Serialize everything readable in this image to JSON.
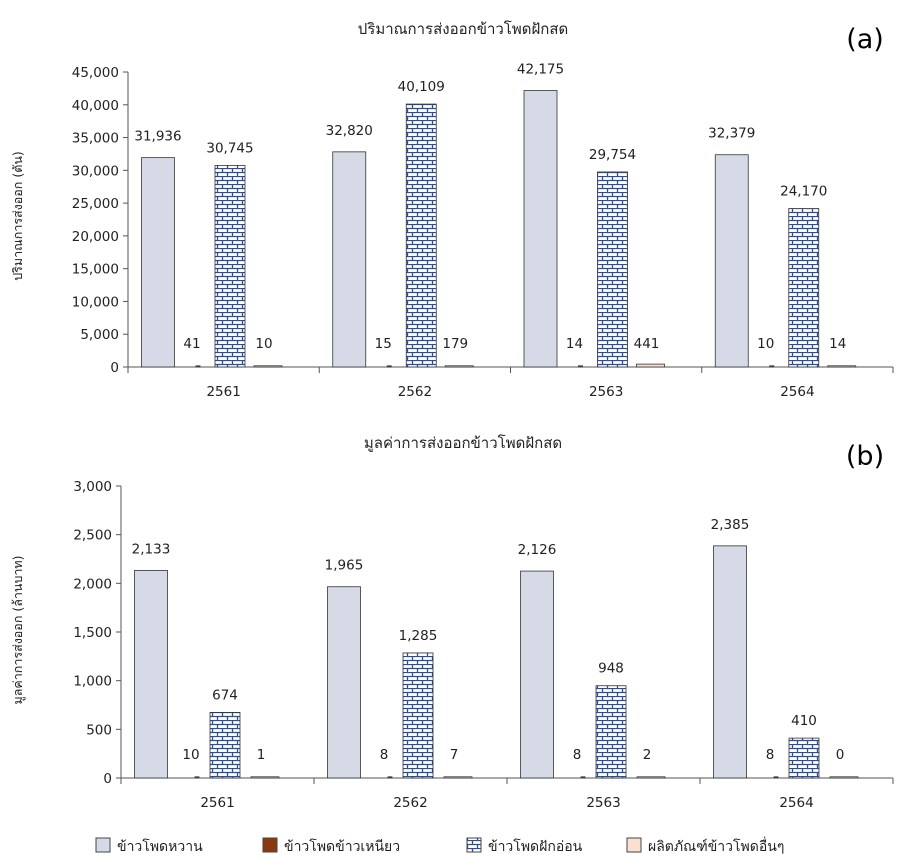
{
  "legend": [
    {
      "label": "ข้าวโพดหวาน",
      "color": "#d5dae6",
      "pattern": "solid"
    },
    {
      "label": "ข้าวโพดข้าวเหนียว",
      "color": "#8b3a0f",
      "pattern": "solid"
    },
    {
      "label": "ข้าวโพดฝักอ่อน",
      "color": "#ffffff",
      "pattern": "brick",
      "pattern_color": "#2b4f9a"
    },
    {
      "label": "ผลิตภัณฑ์ข้าวโพดอื่นๆ",
      "color": "#fbe0d2",
      "pattern": "solid"
    }
  ],
  "chart_data": [
    {
      "type": "bar",
      "panel_label": "(a)",
      "title": "ปริมาณการส่งออกข้าวโพดฝักสด",
      "ylabel": "ปริมาณการส่งออก (ตัน)",
      "xlabel": "",
      "ylim": [
        0,
        45000
      ],
      "yticks": [
        0,
        5000,
        10000,
        15000,
        20000,
        25000,
        30000,
        35000,
        40000,
        45000
      ],
      "ytick_labels": [
        "0",
        "5,000",
        "10,000",
        "15,000",
        "20,000",
        "25,000",
        "30,000",
        "35,000",
        "40,000",
        "45,000"
      ],
      "grid": false,
      "categories": [
        "2561",
        "2562",
        "2563",
        "2564"
      ],
      "series": [
        {
          "name": "ข้าวโพดหวาน",
          "values": [
            31936,
            32820,
            42175,
            32379
          ],
          "labels": [
            "31,936",
            "32,820",
            "42,175",
            "32,379"
          ]
        },
        {
          "name": "ข้าวโพดข้าวเหนียว",
          "values": [
            41,
            15,
            14,
            10
          ],
          "labels": [
            "41",
            "15",
            "14",
            "10"
          ]
        },
        {
          "name": "ข้าวโพดฝักอ่อน",
          "values": [
            30745,
            40109,
            29754,
            24170
          ],
          "labels": [
            "30,745",
            "40,109",
            "29,754",
            "24,170"
          ]
        },
        {
          "name": "ผลิตภัณฑ์ข้าวโพดอื่นๆ",
          "values": [
            10,
            179,
            441,
            14
          ],
          "labels": [
            "10",
            "179",
            "441",
            "14"
          ]
        }
      ]
    },
    {
      "type": "bar",
      "panel_label": "(b)",
      "title": "มูลค่าการส่งออกข้าวโพดฝักสด",
      "ylabel": "มูลค่าการส่งออก (ล้านบาท)",
      "xlabel": "",
      "ylim": [
        0,
        3000
      ],
      "yticks": [
        0,
        500,
        1000,
        1500,
        2000,
        2500,
        3000
      ],
      "ytick_labels": [
        "0",
        "500",
        "1,000",
        "1,500",
        "2,000",
        "2,500",
        "3,000"
      ],
      "grid": false,
      "categories": [
        "2561",
        "2562",
        "2563",
        "2564"
      ],
      "series": [
        {
          "name": "ข้าวโพดหวาน",
          "values": [
            2133,
            1965,
            2126,
            2385
          ],
          "labels": [
            "2,133",
            "1,965",
            "2,126",
            "2,385"
          ]
        },
        {
          "name": "ข้าวโพดข้าวเหนียว",
          "values": [
            10,
            8,
            8,
            8
          ],
          "labels": [
            "10",
            "8",
            "8",
            "8"
          ]
        },
        {
          "name": "ข้าวโพดฝักอ่อน",
          "values": [
            674,
            1285,
            948,
            410
          ],
          "labels": [
            "674",
            "1,285",
            "948",
            "410"
          ]
        },
        {
          "name": "ผลิตภัณฑ์ข้าวโพดอื่นๆ",
          "values": [
            1,
            7,
            2,
            0
          ],
          "labels": [
            "1",
            "7",
            "2",
            "0"
          ]
        }
      ]
    }
  ]
}
